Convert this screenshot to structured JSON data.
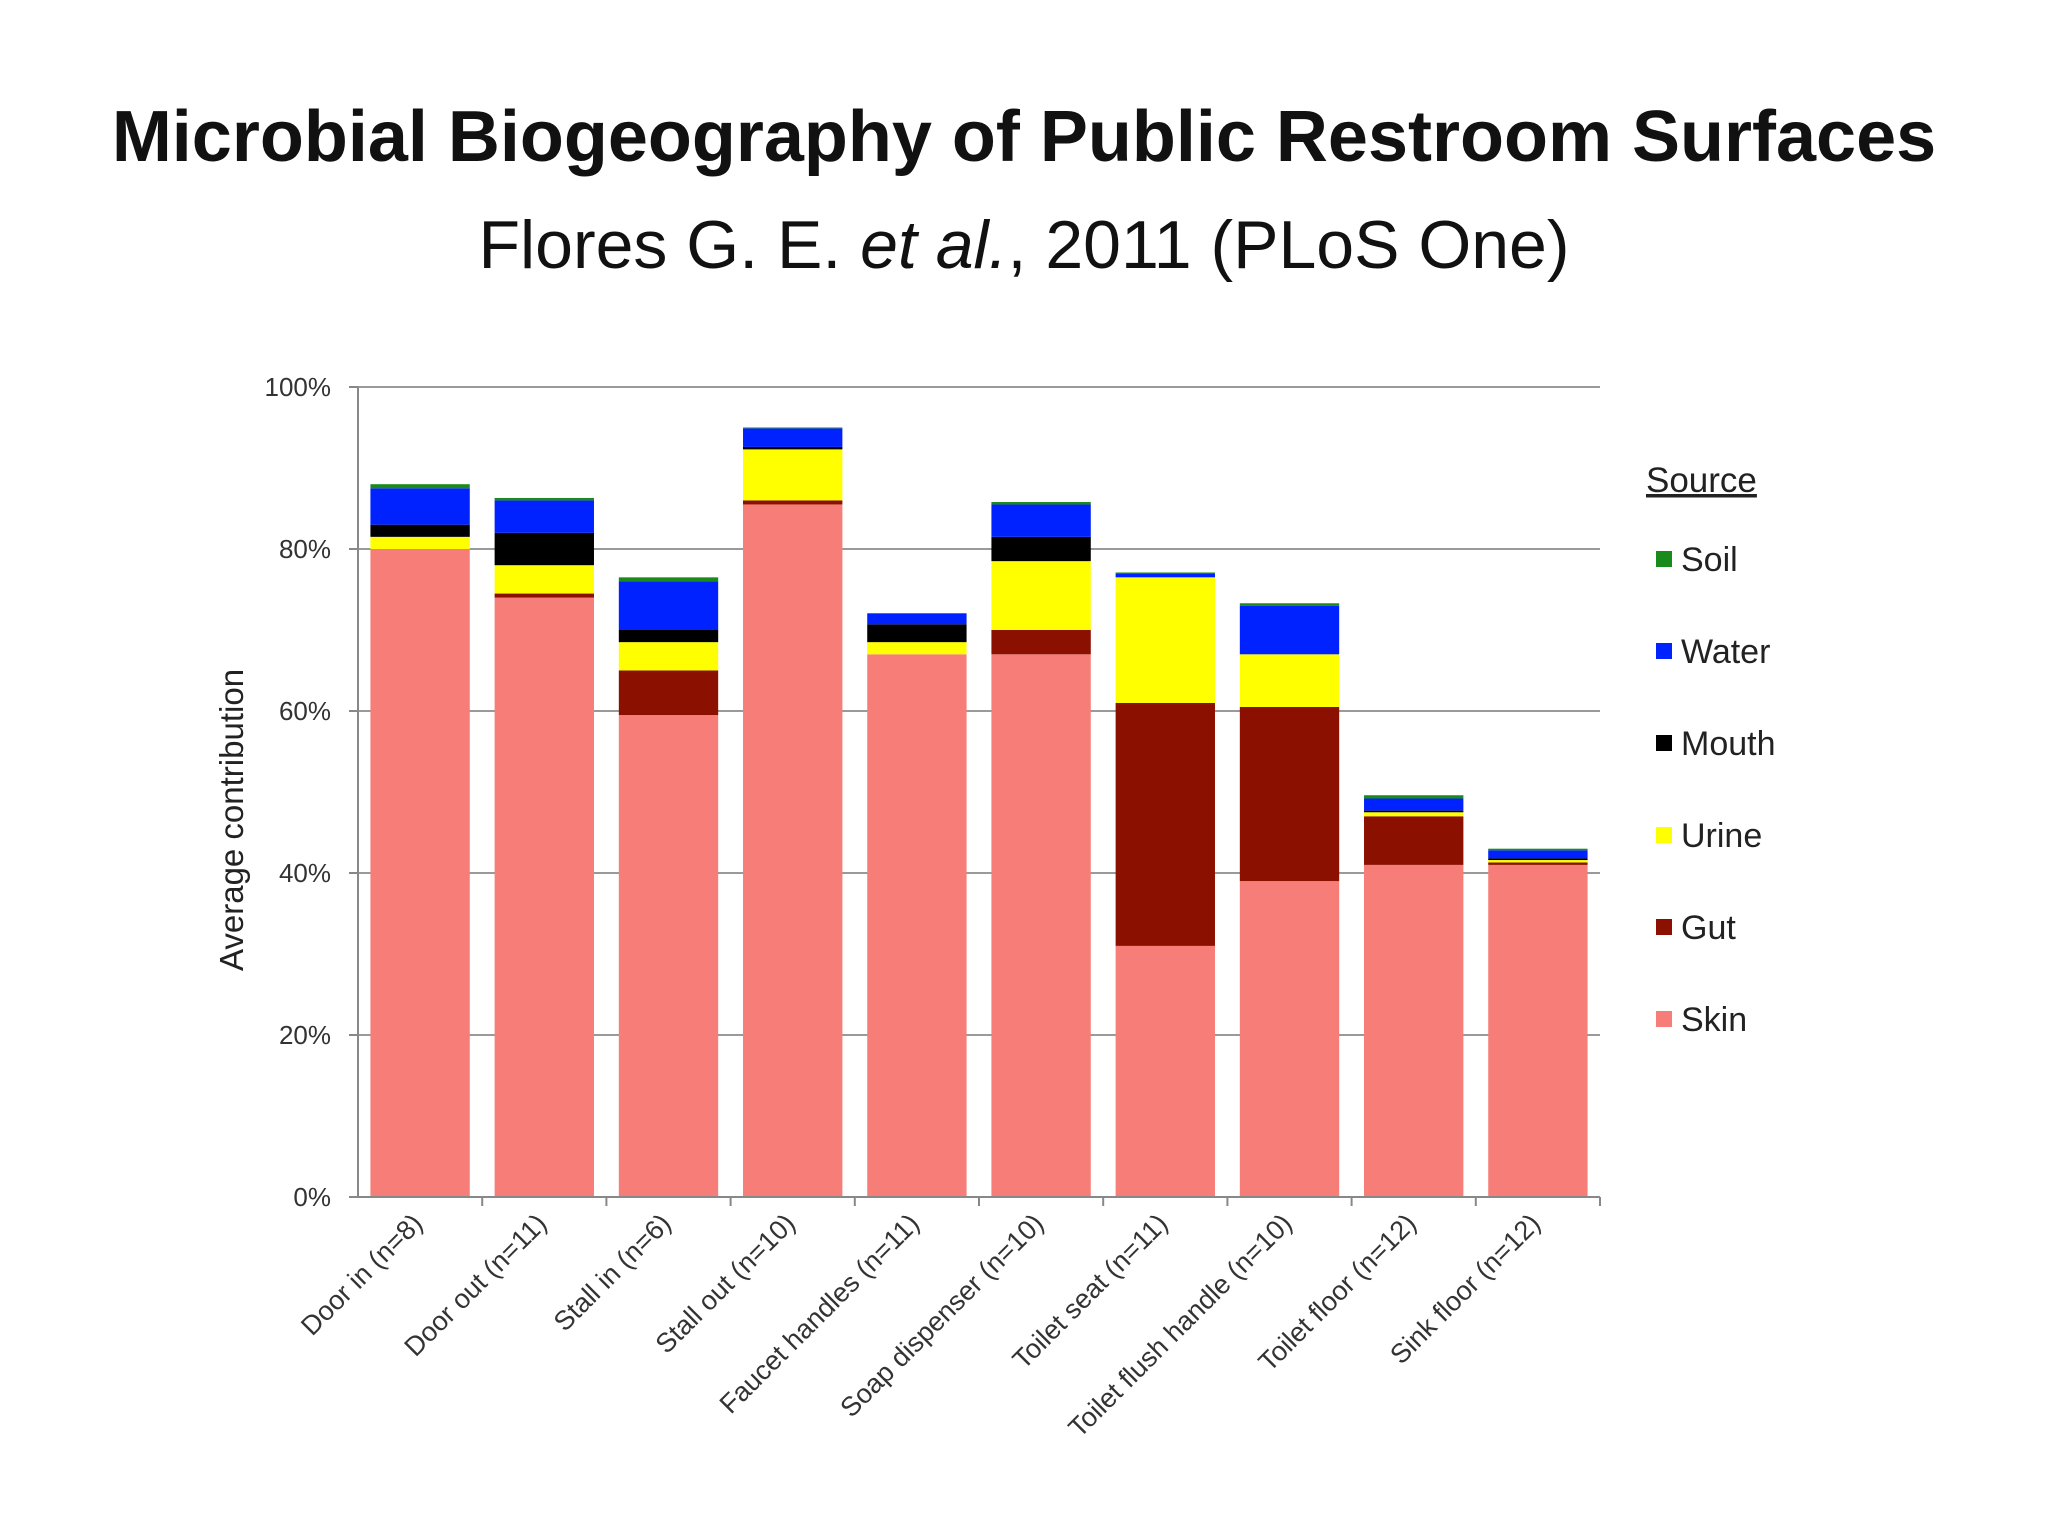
{
  "slide": {
    "title": "Microbial Biogeography of Public Restroom Surfaces",
    "citation_authors": "Flores G. E. ",
    "citation_etal": "et al.",
    "citation_rest": ", 2011 (PLoS One)"
  },
  "chart_data": {
    "type": "bar",
    "stacked": true,
    "ylabel": "Average contribution",
    "xlabel": "",
    "ylim": [
      0,
      100
    ],
    "yticks": [
      "0%",
      "20%",
      "40%",
      "60%",
      "80%",
      "100%"
    ],
    "grid": true,
    "legend_title": "Source",
    "legend_position": "right",
    "legend_order": [
      "Soil",
      "Water",
      "Mouth",
      "Urine",
      "Gut",
      "Skin"
    ],
    "categories": [
      "Door in (n=8)",
      "Door out (n=11)",
      "Stall in (n=6)",
      "Stall out (n=10)",
      "Faucet handles (n=11)",
      "Soap dispenser (n=10)",
      "Toilet seat (n=11)",
      "Toilet flush handle (n=10)",
      "Toilet floor (n=12)",
      "Sink floor (n=12)"
    ],
    "series": [
      {
        "name": "Skin",
        "color": "#f77d78",
        "values": [
          80.0,
          74.0,
          59.5,
          85.5,
          67.0,
          67.0,
          31.0,
          39.0,
          41.0,
          41.0
        ]
      },
      {
        "name": "Gut",
        "color": "#8b1000",
        "values": [
          0.0,
          0.5,
          5.5,
          0.5,
          0.0,
          3.0,
          30.0,
          21.5,
          6.0,
          0.3
        ]
      },
      {
        "name": "Urine",
        "color": "#ffff00",
        "values": [
          1.5,
          3.5,
          3.5,
          6.3,
          1.5,
          8.5,
          15.5,
          6.5,
          0.5,
          0.3
        ]
      },
      {
        "name": "Mouth",
        "color": "#000000",
        "values": [
          1.5,
          4.0,
          1.5,
          0.3,
          2.2,
          3.0,
          0.0,
          0.0,
          0.2,
          0.2
        ]
      },
      {
        "name": "Water",
        "color": "#0022ff",
        "values": [
          4.5,
          4.0,
          6.0,
          2.3,
          1.3,
          4.0,
          0.5,
          6.0,
          1.5,
          1.0
        ]
      },
      {
        "name": "Soil",
        "color": "#1a8a1a",
        "values": [
          0.5,
          0.3,
          0.5,
          0.1,
          0.1,
          0.3,
          0.1,
          0.3,
          0.4,
          0.2
        ]
      }
    ]
  }
}
